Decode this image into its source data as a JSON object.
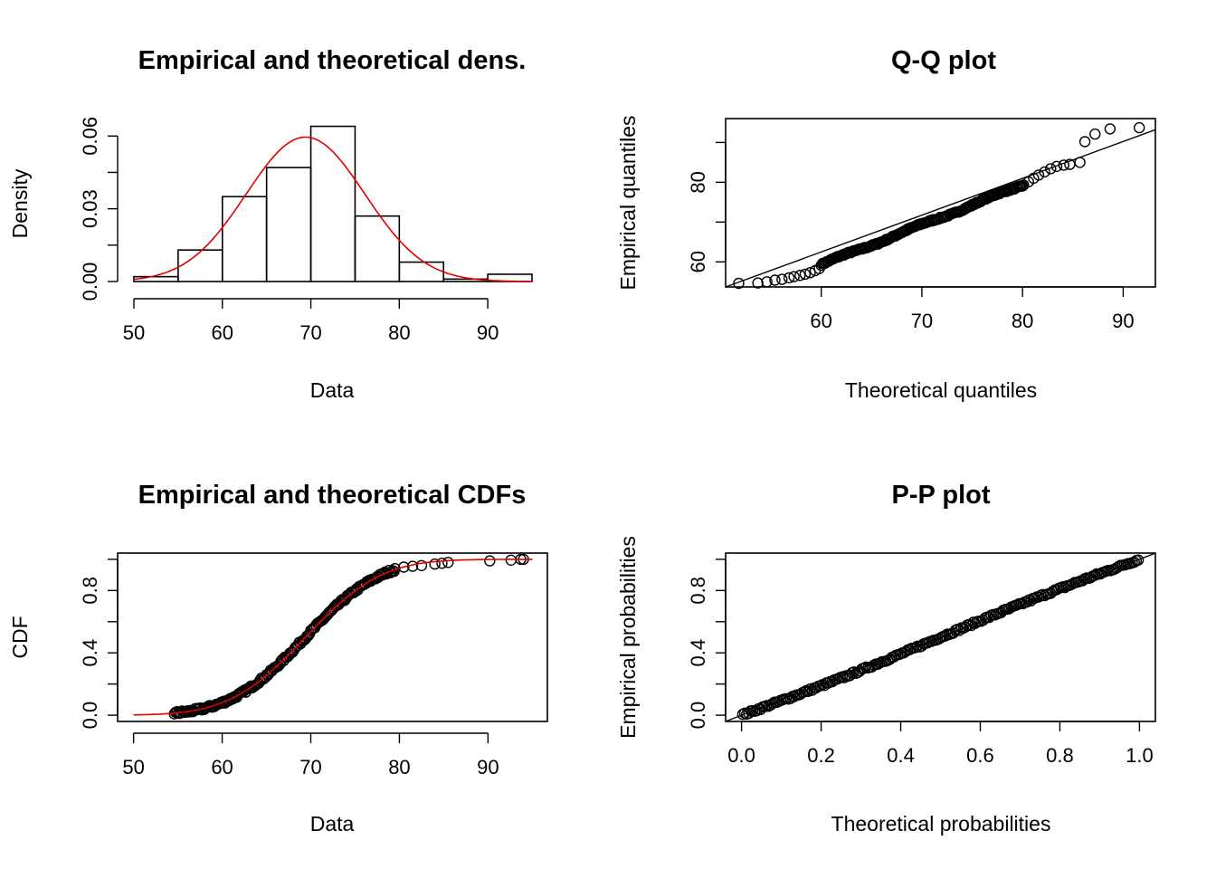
{
  "chart_data": [
    {
      "type": "bar",
      "title": "Empirical and theoretical dens.",
      "xlabel": "Data",
      "ylabel": "Density",
      "xlim": [
        50,
        95
      ],
      "ylim": [
        0,
        0.066
      ],
      "xticks": [
        50,
        60,
        70,
        80,
        90
      ],
      "yticks": [
        0.0,
        0.015,
        0.03,
        0.045,
        0.06
      ],
      "ytick_labels": [
        "0.00",
        "",
        "0.03",
        "",
        "0.06"
      ],
      "bins": [
        [
          50,
          55
        ],
        [
          55,
          60
        ],
        [
          60,
          65
        ],
        [
          65,
          70
        ],
        [
          70,
          75
        ],
        [
          75,
          80
        ],
        [
          80,
          85
        ],
        [
          85,
          90
        ],
        [
          90,
          95
        ]
      ],
      "values": [
        0.002,
        0.013,
        0.035,
        0.047,
        0.064,
        0.027,
        0.008,
        0.001,
        0.003
      ],
      "curve": {
        "color": "#e00000",
        "distribution": "normal",
        "mean": 69.4,
        "sd": 6.7
      }
    },
    {
      "type": "scatter",
      "title": "Q-Q plot",
      "xlabel": "Theoretical quantiles",
      "ylabel": "Empirical quantiles",
      "xlim": [
        50.5,
        93.2
      ],
      "ylim": [
        53.7,
        96.0
      ],
      "xticks": [
        60,
        70,
        80,
        90
      ],
      "yticks": [
        60,
        70,
        80,
        90
      ],
      "ytick_labels": [
        "60",
        "",
        "80",
        ""
      ],
      "reference_line": "y = x",
      "lower_points": [
        [
          51.8,
          54.6
        ],
        [
          53.7,
          54.7
        ],
        [
          54.6,
          55.0
        ],
        [
          55.4,
          55.4
        ],
        [
          56.1,
          55.6
        ],
        [
          56.8,
          56.0
        ],
        [
          57.3,
          56.3
        ],
        [
          57.9,
          56.6
        ],
        [
          58.4,
          56.9
        ],
        [
          58.9,
          57.3
        ],
        [
          59.4,
          57.8
        ],
        [
          59.8,
          58.3
        ]
      ],
      "upper_points": [
        [
          80.1,
          79.3
        ],
        [
          80.6,
          80.1
        ],
        [
          81.1,
          81.0
        ],
        [
          81.6,
          81.8
        ],
        [
          82.2,
          82.6
        ],
        [
          82.8,
          83.4
        ],
        [
          83.4,
          84.0
        ],
        [
          84.1,
          84.3
        ],
        [
          84.7,
          84.5
        ],
        [
          85.7,
          85.0
        ],
        [
          86.2,
          90.2
        ],
        [
          87.2,
          92.1
        ],
        [
          88.7,
          93.4
        ],
        [
          91.6,
          93.7
        ]
      ],
      "middle_trend": [
        [
          60,
          59
        ],
        [
          65,
          64.5
        ],
        [
          70,
          69.6
        ],
        [
          75,
          75.2
        ],
        [
          80,
          79.2
        ]
      ]
    },
    {
      "type": "scatter",
      "title": "Empirical and theoretical CDFs",
      "xlabel": "Data",
      "ylabel": "CDF",
      "xlim": [
        48.2,
        96.7
      ],
      "ylim": [
        -0.04,
        1.04
      ],
      "xticks": [
        50,
        60,
        70,
        80,
        90
      ],
      "yticks": [
        0.0,
        0.2,
        0.4,
        0.6,
        0.8,
        1.0
      ],
      "ytick_labels": [
        "0.0",
        "",
        "0.4",
        "",
        "0.8",
        ""
      ],
      "curve": {
        "color": "#e00000",
        "distribution": "normal",
        "mean": 69.4,
        "sd": 6.7,
        "x_range": [
          50,
          95
        ]
      },
      "outlier_points": [
        [
          79.5,
          0.94
        ],
        [
          80.5,
          0.95
        ],
        [
          81.5,
          0.955
        ],
        [
          82.5,
          0.96
        ],
        [
          84.0,
          0.97
        ],
        [
          84.8,
          0.975
        ],
        [
          85.5,
          0.98
        ],
        [
          90.2,
          0.99
        ],
        [
          92.6,
          0.995
        ],
        [
          93.7,
          1.0
        ],
        [
          94.0,
          1.0
        ]
      ]
    },
    {
      "type": "scatter",
      "title": "P-P plot",
      "xlabel": "Theoretical probabilities",
      "ylabel": "Empirical probabilities",
      "xlim": [
        -0.04,
        1.04
      ],
      "ylim": [
        -0.04,
        1.04
      ],
      "xticks": [
        0.0,
        0.2,
        0.4,
        0.6,
        0.8,
        1.0
      ],
      "xtick_labels": [
        "0.0",
        "0.2",
        "0.4",
        "0.6",
        "0.8",
        "1.0"
      ],
      "yticks": [
        0.0,
        0.2,
        0.4,
        0.6,
        0.8,
        1.0
      ],
      "ytick_labels": [
        "0.0",
        "",
        "0.4",
        "",
        "0.8",
        ""
      ],
      "reference_line": "y = x"
    }
  ]
}
